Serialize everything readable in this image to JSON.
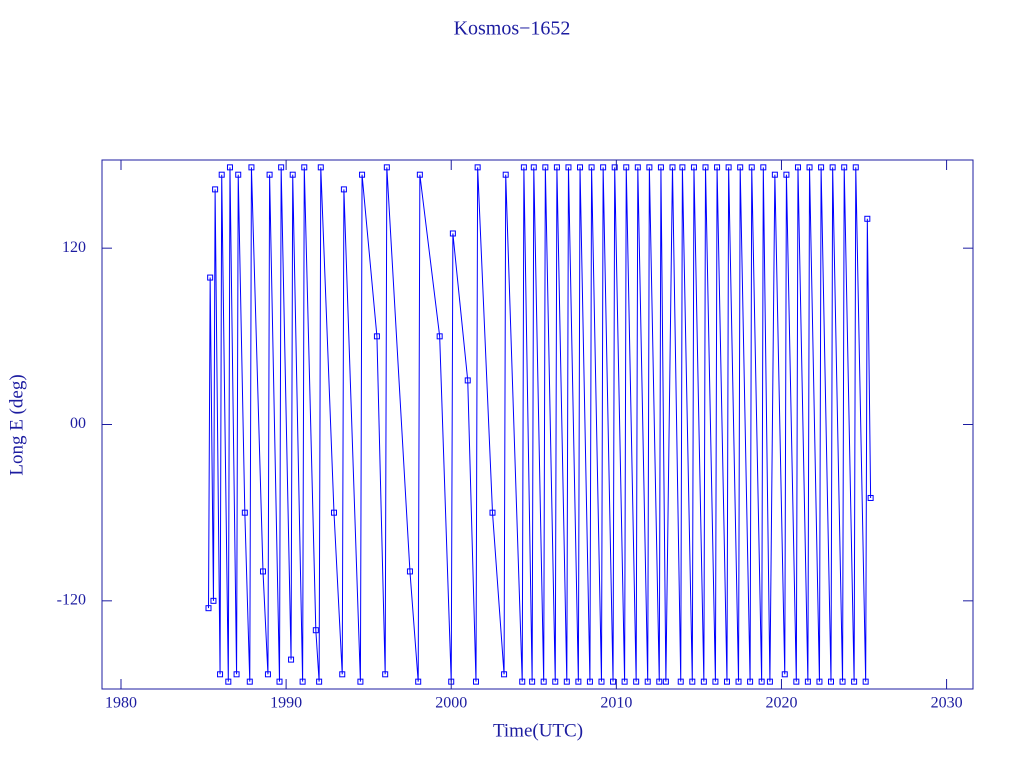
{
  "chart_data": {
    "type": "line",
    "title": "Kosmos−1652",
    "x_label": "Time(UTC)",
    "y_label": "Long E (deg)",
    "color": "#0000ff",
    "x": [
      1985.3,
      1985.4,
      1985.6,
      1985.7,
      1986.0,
      1986.1,
      1986.5,
      1986.6,
      1987.0,
      1987.1,
      1987.5,
      1987.8,
      1987.9,
      1988.6,
      1988.9,
      1989.0,
      1989.6,
      1989.7,
      1990.3,
      1990.4,
      1991.0,
      1991.1,
      1991.8,
      1992.0,
      1992.1,
      1992.9,
      1993.4,
      1993.5,
      1994.5,
      1994.6,
      1995.5,
      1996.0,
      1996.1,
      1997.5,
      1998.0,
      1998.1,
      1999.3,
      2000.0,
      2000.1,
      2001.0,
      2001.5,
      2001.6,
      2002.5,
      2003.2,
      2003.3,
      2004.3,
      2004.4,
      2004.9,
      2005.0,
      2005.6,
      2005.7,
      2006.3,
      2006.4,
      2007.0,
      2007.1,
      2007.7,
      2007.8,
      2008.4,
      2008.5,
      2009.1,
      2009.2,
      2009.8,
      2009.9,
      2010.5,
      2010.6,
      2011.2,
      2011.3,
      2011.9,
      2012.0,
      2012.6,
      2012.7,
      2013.0,
      2013.4,
      2013.9,
      2014.0,
      2014.6,
      2014.7,
      2015.3,
      2015.4,
      2016.0,
      2016.1,
      2016.7,
      2016.8,
      2017.4,
      2017.5,
      2018.1,
      2018.2,
      2018.8,
      2018.9,
      2019.3,
      2019.6,
      2020.2,
      2020.3,
      2020.9,
      2021.0,
      2021.6,
      2021.7,
      2022.3,
      2022.4,
      2023.0,
      2023.1,
      2023.7,
      2023.8,
      2024.4,
      2024.5,
      2025.1,
      2025.2,
      2025.4
    ],
    "values": [
      -125,
      100,
      -120,
      160,
      -170,
      170,
      -175,
      175,
      -170,
      170,
      -60,
      -175,
      175,
      -100,
      -170,
      170,
      -175,
      175,
      -160,
      170,
      -175,
      175,
      -140,
      -175,
      175,
      -60,
      -170,
      160,
      -175,
      170,
      60,
      -170,
      175,
      -100,
      -175,
      170,
      60,
      -175,
      130,
      30,
      -175,
      175,
      -60,
      -170,
      170,
      -175,
      175,
      -175,
      175,
      -175,
      175,
      -175,
      175,
      -175,
      175,
      -175,
      175,
      -175,
      175,
      -175,
      175,
      -175,
      175,
      -175,
      175,
      -175,
      175,
      -175,
      175,
      -175,
      175,
      -175,
      175,
      -175,
      175,
      -175,
      175,
      -175,
      175,
      -175,
      175,
      -175,
      175,
      -175,
      175,
      -175,
      175,
      -175,
      175,
      -175,
      170,
      -170,
      170,
      -175,
      175,
      -175,
      175,
      -175,
      175,
      -175,
      175,
      -175,
      175,
      -175,
      175,
      -175,
      140,
      -50
    ],
    "xlim": [
      1978.85,
      2031.6
    ],
    "xticks": [
      1980,
      1990,
      2000,
      2010,
      2020,
      2030
    ],
    "ylim": [
      -180,
      180
    ],
    "yticks": [
      -120,
      {
        "value": 0,
        "label": "00"
      },
      120
    ]
  }
}
